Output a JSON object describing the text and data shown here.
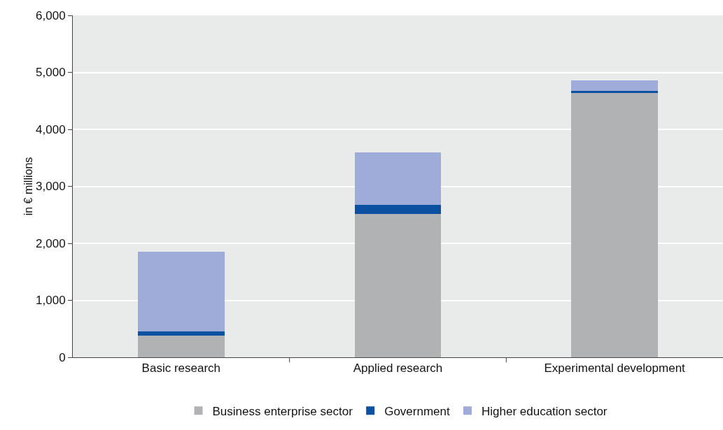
{
  "chart_data": {
    "type": "bar",
    "stacked": true,
    "ylabel": "in € millions",
    "categories": [
      "Basic research",
      "Applied research",
      "Experimental development"
    ],
    "series": [
      {
        "name": "Business enterprise sector",
        "color": "#b1b2b3",
        "values": [
          380,
          2510,
          4640
        ]
      },
      {
        "name": "Government",
        "color": "#0c51a1",
        "values": [
          80,
          160,
          30
        ]
      },
      {
        "name": "Higher education sector",
        "color": "#9fabd8",
        "values": [
          1390,
          930,
          190
        ]
      }
    ],
    "ylim": [
      0,
      6000
    ],
    "yticks": [
      {
        "value": 0,
        "label": "0"
      },
      {
        "value": 1000,
        "label": "1,000"
      },
      {
        "value": 2000,
        "label": "2,000"
      },
      {
        "value": 3000,
        "label": "3,000"
      },
      {
        "value": 4000,
        "label": "4,000"
      },
      {
        "value": 5000,
        "label": "5,000"
      },
      {
        "value": 6000,
        "label": "6,000"
      }
    ],
    "grid": "y",
    "legend": "bottom"
  }
}
